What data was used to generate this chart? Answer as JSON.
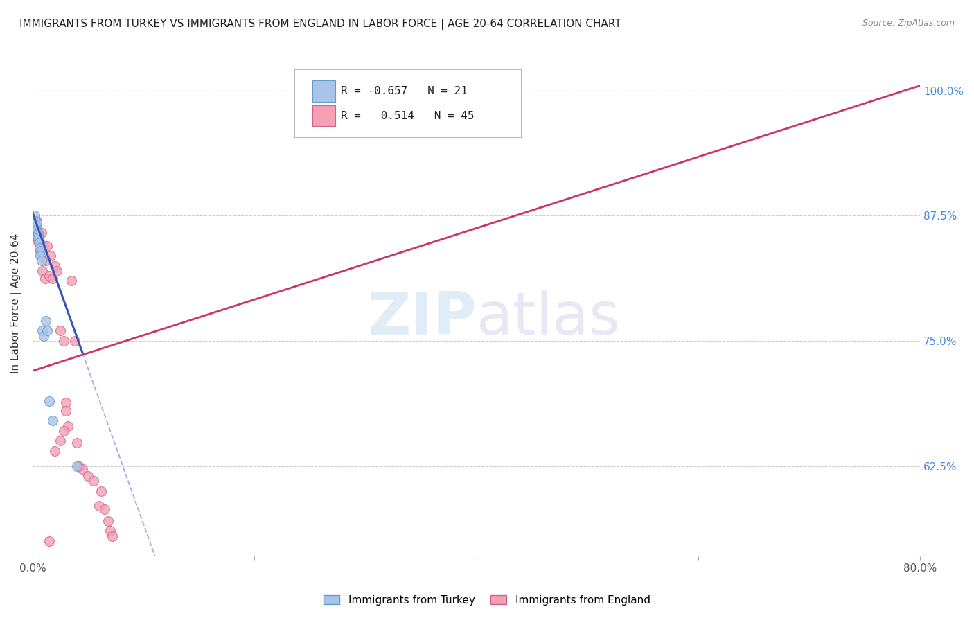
{
  "title": "IMMIGRANTS FROM TURKEY VS IMMIGRANTS FROM ENGLAND IN LABOR FORCE | AGE 20-64 CORRELATION CHART",
  "source": "Source: ZipAtlas.com",
  "ylabel": "In Labor Force | Age 20-64",
  "ytick_labels": [
    "100.0%",
    "87.5%",
    "75.0%",
    "62.5%"
  ],
  "ytick_values": [
    1.0,
    0.875,
    0.75,
    0.625
  ],
  "xlim": [
    0.0,
    0.8
  ],
  "ylim": [
    0.535,
    1.04
  ],
  "legend_turkey": {
    "R": "-0.657",
    "N": "21",
    "color": "#aac4e8"
  },
  "legend_england": {
    "R": "0.514",
    "N": "45",
    "color": "#f4a0b5"
  },
  "turkey_scatter_x": [
    0.001,
    0.002,
    0.002,
    0.003,
    0.003,
    0.004,
    0.004,
    0.005,
    0.005,
    0.006,
    0.006,
    0.007,
    0.007,
    0.008,
    0.009,
    0.01,
    0.012,
    0.013,
    0.015,
    0.018,
    0.04
  ],
  "turkey_scatter_y": [
    0.855,
    0.875,
    0.87,
    0.865,
    0.86,
    0.868,
    0.855,
    0.857,
    0.853,
    0.848,
    0.843,
    0.84,
    0.835,
    0.83,
    0.76,
    0.755,
    0.77,
    0.76,
    0.69,
    0.67,
    0.625
  ],
  "england_scatter_x": [
    0.001,
    0.002,
    0.002,
    0.003,
    0.003,
    0.004,
    0.004,
    0.005,
    0.005,
    0.006,
    0.007,
    0.008,
    0.008,
    0.009,
    0.01,
    0.011,
    0.012,
    0.013,
    0.015,
    0.016,
    0.018,
    0.02,
    0.022,
    0.025,
    0.028,
    0.03,
    0.032,
    0.035,
    0.038,
    0.04,
    0.042,
    0.045,
    0.05,
    0.055,
    0.06,
    0.062,
    0.065,
    0.068,
    0.07,
    0.072,
    0.03,
    0.028,
    0.025,
    0.02,
    0.015
  ],
  "england_scatter_y": [
    0.858,
    0.862,
    0.858,
    0.854,
    0.85,
    0.87,
    0.858,
    0.855,
    0.85,
    0.848,
    0.84,
    0.858,
    0.842,
    0.82,
    0.845,
    0.812,
    0.83,
    0.845,
    0.815,
    0.835,
    0.812,
    0.825,
    0.82,
    0.76,
    0.75,
    0.688,
    0.665,
    0.81,
    0.75,
    0.648,
    0.625,
    0.622,
    0.615,
    0.61,
    0.585,
    0.6,
    0.582,
    0.57,
    0.56,
    0.555,
    0.68,
    0.66,
    0.65,
    0.64,
    0.55
  ],
  "turkey_line_x0": 0.0,
  "turkey_line_x1": 0.045,
  "turkey_line_y0": 0.878,
  "turkey_line_y1": 0.738,
  "turkey_line_dash_x0": 0.045,
  "turkey_line_dash_x1": 0.6,
  "england_line_x0": 0.0,
  "england_line_x1": 0.8,
  "england_line_y0": 0.72,
  "england_line_y1": 1.005,
  "background_color": "#ffffff",
  "scatter_size": 100,
  "turkey_dot_color": "#aac4e8",
  "turkey_dot_edge": "#6699cc",
  "england_dot_color": "#f4a0b5",
  "england_dot_edge": "#cc6688",
  "turkey_line_color": "#3355bb",
  "england_line_color": "#cc3366",
  "watermark_zip": "ZIP",
  "watermark_atlas": "atlas",
  "title_fontsize": 11,
  "axis_label_fontsize": 11,
  "tick_fontsize": 11
}
